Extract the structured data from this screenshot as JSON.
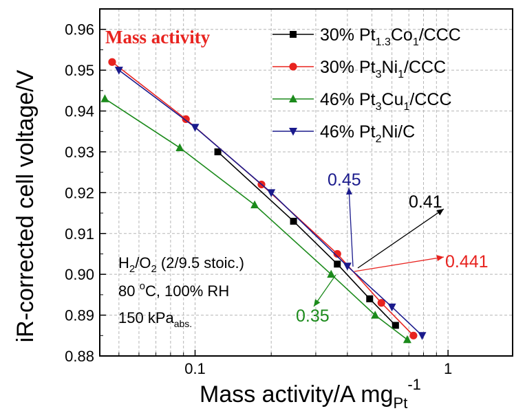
{
  "chart_data": {
    "type": "line",
    "title": "Mass activity",
    "title_color": "#e8231f",
    "ylabel": "iR-corrected cell voltage/V",
    "xlabel": {
      "main": "Mass activity/A mg",
      "sub": "Pt",
      "sup": "-1"
    },
    "x_scale": "log",
    "xlim": [
      0.042,
      1.8
    ],
    "ylim": [
      0.88,
      0.965
    ],
    "x_ticks": [
      0.1,
      1
    ],
    "x_tick_labels": [
      "0.1",
      "1"
    ],
    "y_ticks": [
      0.88,
      0.89,
      0.9,
      0.91,
      0.92,
      0.93,
      0.94,
      0.95,
      0.96
    ],
    "y_tick_labels": [
      "0.88",
      "0.89",
      "0.90",
      "0.91",
      "0.92",
      "0.93",
      "0.94",
      "0.95",
      "0.96"
    ],
    "grid": true,
    "legend_position": "top-right",
    "series": [
      {
        "legend": {
          "prefix": "30% Pt",
          "sub1": "1.3",
          "mid": "Co",
          "sub2": "1",
          "suffix": "/CCC"
        },
        "color": "#000000",
        "marker": "square",
        "x": [
          0.123,
          0.245,
          0.365,
          0.49,
          0.62
        ],
        "y": [
          0.93,
          0.913,
          0.9025,
          0.894,
          0.8875
        ]
      },
      {
        "legend": {
          "prefix": "30% Pt",
          "sub1": "3",
          "mid": "Ni",
          "sub2": "1",
          "suffix": "/CCC"
        },
        "color": "#e8231f",
        "marker": "circle",
        "x": [
          0.047,
          0.092,
          0.183,
          0.365,
          0.545,
          0.73
        ],
        "y": [
          0.952,
          0.938,
          0.922,
          0.905,
          0.893,
          0.885
        ]
      },
      {
        "legend": {
          "prefix": "46% Pt",
          "sub1": "3",
          "mid": "Cu",
          "sub2": "1",
          "suffix": "/CCC"
        },
        "color": "#1b8a1b",
        "marker": "triangle-up",
        "x": [
          0.044,
          0.087,
          0.172,
          0.345,
          0.515,
          0.69
        ],
        "y": [
          0.943,
          0.931,
          0.917,
          0.9,
          0.89,
          0.884
        ]
      },
      {
        "legend": {
          "prefix": "46% Pt",
          "sub1": "2",
          "mid": "Ni/C",
          "sub2": "",
          "suffix": ""
        },
        "color": "#1a1a8c",
        "marker": "triangle-down",
        "x": [
          0.05,
          0.1,
          0.2,
          0.4,
          0.6,
          0.79
        ],
        "y": [
          0.95,
          0.936,
          0.92,
          0.902,
          0.892,
          0.885
        ]
      }
    ],
    "conditions": {
      "line1": {
        "a": "H",
        "a_sub": "2",
        "b": "/O",
        "b_sub": "2",
        "c": " (2/9.5 stoic.)"
      },
      "line2": {
        "a": "80 ",
        "a_sup": "o",
        "b": "C, 100% RH"
      },
      "line3": {
        "a": "150 kPa",
        "a_sub": "abs."
      }
    },
    "annotations": [
      {
        "text": "0.45",
        "color": "#1a1a8c",
        "x_at": 0.45,
        "y_at": 0.901
      },
      {
        "text": "0.41",
        "color": "#000000",
        "x_at": 0.41,
        "y_at": 0.9005
      },
      {
        "text": "0.441",
        "color": "#e8231f",
        "x_at": 0.441,
        "y_at": 0.9
      },
      {
        "text": "0.35",
        "color": "#1b8a1b",
        "x_at": 0.35,
        "y_at": 0.9
      }
    ]
  }
}
